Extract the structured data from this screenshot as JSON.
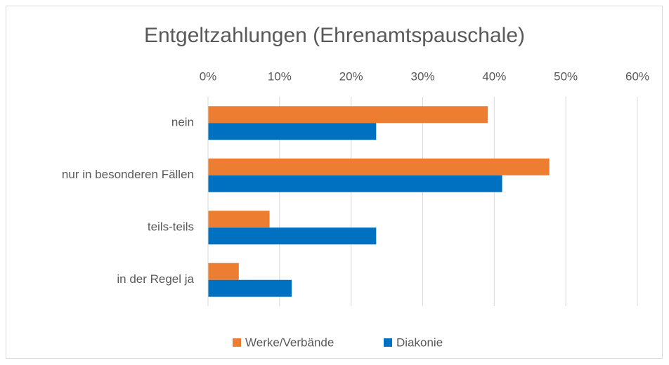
{
  "chart_data": {
    "type": "hbar",
    "title": "Entgeltzahlungen (Ehrenamtspauschale)",
    "categories": [
      "nein",
      "nur in besonderen Fällen",
      "teils-teils",
      "in der Regel ja"
    ],
    "series": [
      {
        "name": "Werke/Verbände",
        "color": "#ed7d31",
        "values": [
          39.1,
          47.7,
          8.6,
          4.3
        ]
      },
      {
        "name": "Diakonie",
        "color": "#0070c0",
        "values": [
          23.5,
          41.1,
          23.5,
          11.7
        ]
      }
    ],
    "xlim": [
      0,
      60
    ],
    "xticks": [
      {
        "value": 0,
        "label": "0%"
      },
      {
        "value": 10,
        "label": "10%"
      },
      {
        "value": 20,
        "label": "20%"
      },
      {
        "value": 30,
        "label": "30%"
      },
      {
        "value": 40,
        "label": "40%"
      },
      {
        "value": 50,
        "label": "50%"
      },
      {
        "value": 60,
        "label": "60%"
      }
    ],
    "grid": true,
    "legend": "bottom"
  }
}
